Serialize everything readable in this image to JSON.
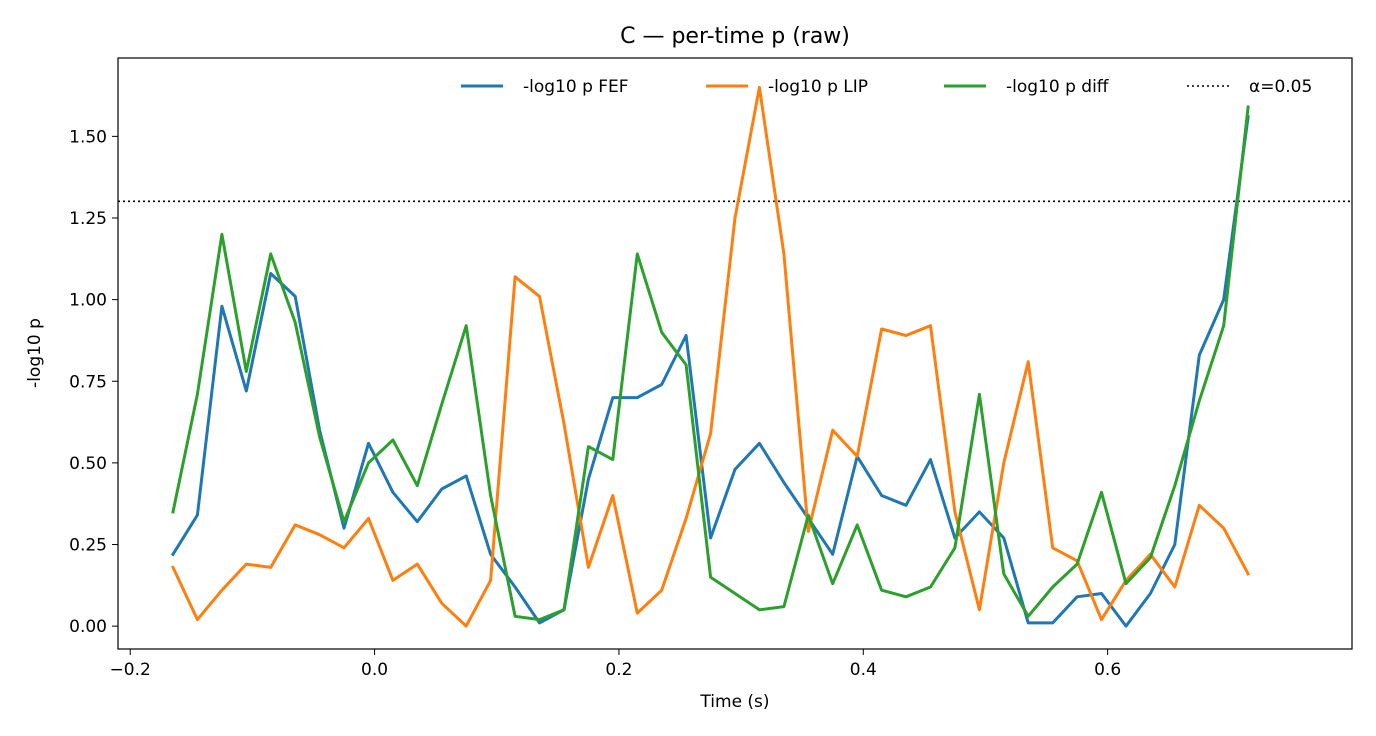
{
  "chart_data": {
    "type": "line",
    "title": "C — per-time p (raw)",
    "xlabel": "Time (s)",
    "ylabel": "-log10 p",
    "xlim": [
      -0.21,
      0.8
    ],
    "ylim": [
      -0.07,
      1.74
    ],
    "xticks": [
      -0.2,
      0.0,
      0.2,
      0.4,
      0.6
    ],
    "xtick_labels": [
      "−0.2",
      "0.0",
      "0.2",
      "0.4",
      "0.6"
    ],
    "yticks": [
      0.0,
      0.25,
      0.5,
      0.75,
      1.0,
      1.25,
      1.5
    ],
    "ytick_labels": [
      "0.00",
      "0.25",
      "0.50",
      "0.75",
      "1.00",
      "1.25",
      "1.50"
    ],
    "grid": false,
    "legend_position": "top-right",
    "x": [
      -0.165,
      -0.145,
      -0.125,
      -0.105,
      -0.085,
      -0.065,
      -0.045,
      -0.025,
      -0.005,
      0.015,
      0.035,
      0.055,
      0.075,
      0.095,
      0.115,
      0.135,
      0.155,
      0.175,
      0.195,
      0.215,
      0.235,
      0.255,
      0.275,
      0.295,
      0.315,
      0.335,
      0.355,
      0.375,
      0.395,
      0.415,
      0.435,
      0.455,
      0.475,
      0.495,
      0.515,
      0.535,
      0.555,
      0.575,
      0.595,
      0.615,
      0.635,
      0.655,
      0.675,
      0.695,
      0.715
    ],
    "series": [
      {
        "name": "-log10 p FEF",
        "color": "#1f77b4",
        "values": [
          0.22,
          0.34,
          0.98,
          0.72,
          1.08,
          1.01,
          0.6,
          0.3,
          0.56,
          0.41,
          0.32,
          0.42,
          0.46,
          0.22,
          0.12,
          0.01,
          0.05,
          0.45,
          0.7,
          0.7,
          0.74,
          0.89,
          0.27,
          0.48,
          0.56,
          0.44,
          0.33,
          0.22,
          0.52,
          0.4,
          0.37,
          0.51,
          0.27,
          0.35,
          0.27,
          0.01,
          0.01,
          0.09,
          0.1,
          0.0,
          0.1,
          0.25,
          0.83,
          1.0,
          1.56
        ]
      },
      {
        "name": "-log10 p LIP",
        "color": "#ff7f0e",
        "values": [
          0.18,
          0.02,
          0.11,
          0.19,
          0.18,
          0.31,
          0.28,
          0.24,
          0.33,
          0.14,
          0.19,
          0.07,
          0.0,
          0.14,
          1.07,
          1.01,
          0.62,
          0.18,
          0.4,
          0.04,
          0.11,
          0.33,
          0.59,
          1.25,
          1.65,
          1.14,
          0.29,
          0.6,
          0.52,
          0.91,
          0.89,
          0.92,
          0.35,
          0.05,
          0.5,
          0.81,
          0.24,
          0.2,
          0.02,
          0.14,
          0.22,
          0.12,
          0.37,
          0.3,
          0.16
        ]
      },
      {
        "name": "-log10 p diff",
        "color": "#2ca02c",
        "values": [
          0.35,
          0.71,
          1.2,
          0.78,
          1.14,
          0.93,
          0.58,
          0.32,
          0.5,
          0.57,
          0.43,
          0.68,
          0.92,
          0.4,
          0.03,
          0.02,
          0.05,
          0.55,
          0.51,
          1.14,
          0.9,
          0.8,
          0.15,
          0.1,
          0.05,
          0.06,
          0.34,
          0.13,
          0.31,
          0.11,
          0.09,
          0.12,
          0.24,
          0.71,
          0.16,
          0.03,
          0.12,
          0.19,
          0.41,
          0.13,
          0.21,
          0.43,
          0.69,
          0.92,
          1.59
        ]
      }
    ],
    "reference_line": {
      "label": "α=0.05",
      "y": 1.301,
      "color": "#000000",
      "style": "dotted"
    }
  }
}
